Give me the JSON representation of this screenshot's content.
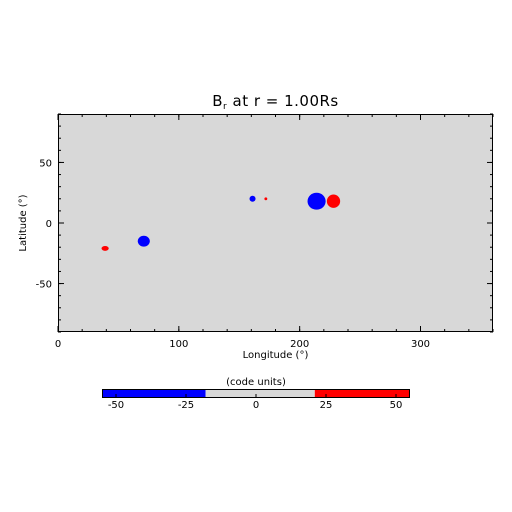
{
  "chart_data": {
    "type": "heatmap",
    "title": {
      "prefix": "B",
      "subscript": "r",
      "suffix": " at r = 1.00Rs"
    },
    "xlabel": "Longitude (°)",
    "ylabel": "Latitude (°)",
    "xlim": [
      0,
      360
    ],
    "ylim": [
      -90,
      90
    ],
    "xticks": [
      0,
      100,
      200,
      300
    ],
    "yticks": [
      -50,
      0,
      50
    ],
    "x_minor_step": 20,
    "y_minor_step": 10,
    "background_value": 0,
    "background_color": "#d8d8d8",
    "spots": [
      {
        "lon": 39,
        "lat": -21,
        "rlon": 3,
        "rlat": 2,
        "polarity": "positive"
      },
      {
        "lon": 71,
        "lat": -15,
        "rlon": 5,
        "rlat": 4.5,
        "polarity": "negative"
      },
      {
        "lon": 161,
        "lat": 20,
        "rlon": 2.5,
        "rlat": 2.5,
        "polarity": "negative"
      },
      {
        "lon": 172,
        "lat": 20,
        "rlon": 1.2,
        "rlat": 1.2,
        "polarity": "positive"
      },
      {
        "lon": 214,
        "lat": 18,
        "rlon": 7.5,
        "rlat": 7,
        "polarity": "negative"
      },
      {
        "lon": 228,
        "lat": 18,
        "rlon": 5.5,
        "rlat": 5.5,
        "polarity": "positive"
      }
    ],
    "colorbar": {
      "label": "(code units)",
      "range": [
        -55,
        55
      ],
      "ticks": [
        -50,
        -25,
        0,
        25,
        50
      ],
      "segments": [
        {
          "from": -55,
          "to": -18,
          "color": "#0000ff"
        },
        {
          "from": -18,
          "to": 21,
          "color": "#d8d8d8"
        },
        {
          "from": 21,
          "to": 55,
          "color": "#ff0000"
        }
      ]
    },
    "colors": {
      "negative": "#0000ff",
      "positive": "#ff0000",
      "neutral": "#d8d8d8"
    }
  }
}
